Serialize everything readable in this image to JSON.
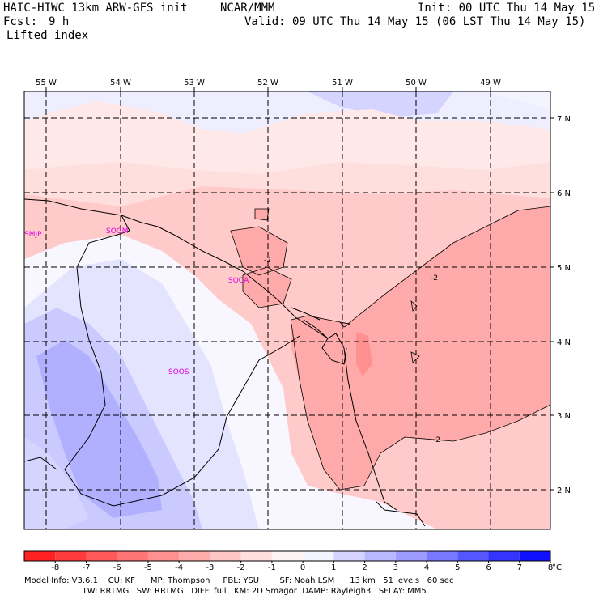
{
  "header": {
    "model": "HAIC-HIWC 13km ARW-GFS init",
    "center": "NCAR/MMM",
    "init": "Init: 00 UTC Thu 14 May 15",
    "fcst_label": "Fcst:",
    "fcst_value": "9 h",
    "valid": "Valid: 09 UTC Thu 14 May 15 (06 LST Thu 14 May 15)",
    "field": "Lifted index"
  },
  "map": {
    "lon_labels": [
      "55 W",
      "54 W",
      "53 W",
      "52 W",
      "51 W",
      "50 W",
      "49 W"
    ],
    "lat_labels": [
      "7 N",
      "6 N",
      "5 N",
      "4 N",
      "3 N",
      "2 N"
    ],
    "stations": [
      "SMJP",
      "SOCA",
      "SOOS",
      "SOGM"
    ],
    "contour_labels": [
      "-2",
      "-2",
      "-2"
    ]
  },
  "colorbar": {
    "ticks": [
      "-8",
      "-7",
      "-6",
      "-5",
      "-4",
      "-3",
      "-2",
      "-1",
      "0",
      "1",
      "2",
      "3",
      "4",
      "5",
      "6",
      "7",
      "8"
    ],
    "unit": "°C",
    "colors": [
      "#ff2020",
      "#ff3c3c",
      "#ff5858",
      "#ff7474",
      "#ff9090",
      "#ffacac",
      "#ffc6c6",
      "#ffdede",
      "#fff4f4",
      "#f4f4ff",
      "#d4d4ff",
      "#b8b8ff",
      "#9c9cff",
      "#7878ff",
      "#5656ff",
      "#3434ff",
      "#1010ff"
    ]
  },
  "footer": {
    "line1": "Model Info: V3.6.1    CU: KF      MP: Thompson     PBL: YSU        SF: Noah LSM      13 km   51 levels   60 sec",
    "line2": "                       LW: RRTMG   SW: RRTMG   DIFF: full   KM: 2D Smagor  DAMP: Rayleigh3   SFLAY: MM5"
  }
}
